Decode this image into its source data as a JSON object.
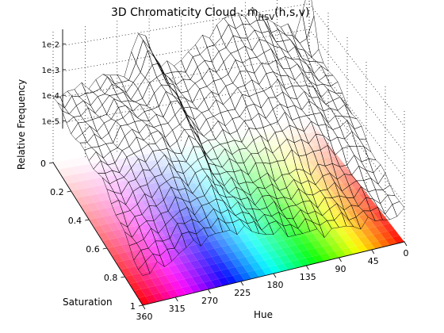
{
  "chart_data": {
    "type": "surface",
    "title": {
      "main": "3D Chromaticity Cloud : m",
      "subscript": "HSV",
      "suffix": "(h,s,v)"
    },
    "xlabel": "Hue",
    "ylabel": "Saturation",
    "zlabel": "Relative Frequency",
    "x_ticks": [
      "360",
      "315",
      "270",
      "225",
      "180",
      "135",
      "90",
      "45",
      "0"
    ],
    "x_tick_values": [
      360,
      315,
      270,
      225,
      180,
      135,
      90,
      45,
      0
    ],
    "y_ticks": [
      "0",
      "0.2",
      "0.4",
      "0.6",
      "0.8",
      "1"
    ],
    "y_tick_values": [
      0,
      0.2,
      0.4,
      0.6,
      0.8,
      1
    ],
    "z_ticks": [
      "1e-5",
      "1e-4",
      "1e-3",
      "1e-2"
    ],
    "z_tick_values": [
      -5,
      -4,
      -3,
      -2
    ],
    "z_scale": "log",
    "xlim": [
      0,
      360
    ],
    "ylim": [
      0,
      1
    ],
    "zlim_log10": [
      -6.5,
      -1.3
    ],
    "grid": "on",
    "floor_coloring": "hue-saturation color map",
    "surface": {
      "hue_step": 10,
      "saturation_step": 0.05,
      "description_values": [
        {
          "region": "low saturation, all hues",
          "log10_frequency_approx": -4.5
        },
        {
          "region": "hue ~260-300, saturation 0.2-0.9",
          "log10_frequency_approx": -3.6
        },
        {
          "region": "hue ~210-250 ridge",
          "log10_frequency_approx": -2.6
        },
        {
          "region": "hue ~30-160, low saturation plateau",
          "log10_frequency_approx": -2.2
        },
        {
          "region": "hue ~0, saturation 0 peak",
          "log10_frequency_approx": -1.5
        },
        {
          "region": "high saturation, most hues",
          "log10_frequency_approx": -6.0
        }
      ]
    }
  }
}
